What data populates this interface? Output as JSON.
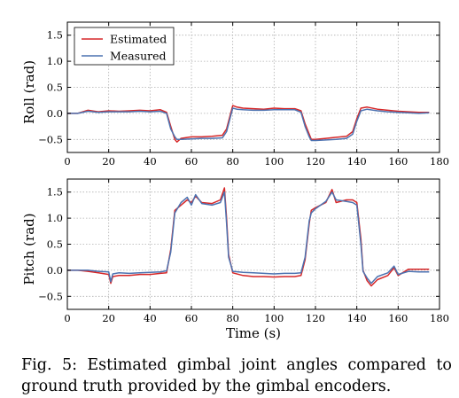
{
  "caption": {
    "label": "Fig. 5:",
    "text": "Estimated gimbal joint angles compared to ground truth provided by the gimbal encoders."
  },
  "chart_data": [
    {
      "type": "line",
      "title": "",
      "xlabel": "",
      "ylabel": "Roll (rad)",
      "xlim": [
        0,
        180
      ],
      "ylim": [
        -0.75,
        1.75
      ],
      "xticks": [
        0,
        20,
        40,
        60,
        80,
        100,
        120,
        140,
        160,
        180
      ],
      "yticks": [
        -0.5,
        0.0,
        0.5,
        1.0,
        1.5
      ],
      "ytick_labels": [
        "−0.5",
        "0.0",
        "0.5",
        "1.0",
        "1.5"
      ],
      "grid": true,
      "legend": "top-left",
      "series": [
        {
          "name": "Estimated",
          "color": "#d62728",
          "x": [
            0,
            5,
            10,
            15,
            20,
            25,
            30,
            35,
            40,
            45,
            48,
            50,
            52,
            53,
            55,
            60,
            65,
            70,
            75,
            77,
            79,
            80,
            82,
            85,
            90,
            95,
            100,
            105,
            110,
            113,
            115,
            117,
            118,
            120,
            125,
            130,
            135,
            138,
            140,
            142,
            145,
            150,
            155,
            160,
            165,
            170,
            175
          ],
          "y": [
            0.0,
            0.0,
            0.06,
            0.03,
            0.05,
            0.04,
            0.05,
            0.06,
            0.05,
            0.07,
            0.02,
            -0.25,
            -0.5,
            -0.55,
            -0.48,
            -0.45,
            -0.45,
            -0.44,
            -0.42,
            -0.3,
            0.0,
            0.15,
            0.12,
            0.1,
            0.09,
            0.08,
            0.1,
            0.09,
            0.09,
            0.05,
            -0.2,
            -0.4,
            -0.5,
            -0.5,
            -0.48,
            -0.46,
            -0.44,
            -0.35,
            -0.1,
            0.1,
            0.12,
            0.08,
            0.06,
            0.04,
            0.03,
            0.02,
            0.02
          ]
        },
        {
          "name": "Measured",
          "color": "#4c72b0",
          "x": [
            0,
            5,
            10,
            15,
            20,
            25,
            30,
            35,
            40,
            45,
            48,
            50,
            52,
            53,
            55,
            60,
            65,
            70,
            75,
            77,
            79,
            80,
            82,
            85,
            90,
            95,
            100,
            105,
            110,
            113,
            115,
            117,
            118,
            120,
            125,
            130,
            135,
            138,
            140,
            142,
            145,
            150,
            155,
            160,
            165,
            170,
            175
          ],
          "y": [
            0.0,
            0.0,
            0.04,
            0.02,
            0.03,
            0.03,
            0.03,
            0.04,
            0.03,
            0.04,
            0.0,
            -0.3,
            -0.45,
            -0.5,
            -0.5,
            -0.49,
            -0.48,
            -0.48,
            -0.47,
            -0.35,
            -0.05,
            0.1,
            0.08,
            0.07,
            0.06,
            0.06,
            0.07,
            0.07,
            0.07,
            0.02,
            -0.25,
            -0.45,
            -0.52,
            -0.52,
            -0.51,
            -0.5,
            -0.48,
            -0.4,
            -0.15,
            0.05,
            0.08,
            0.05,
            0.03,
            0.02,
            0.01,
            0.0,
            0.01
          ]
        }
      ]
    },
    {
      "type": "line",
      "title": "",
      "xlabel": "Time (s)",
      "ylabel": "Pitch (rad)",
      "xlim": [
        0,
        180
      ],
      "ylim": [
        -0.75,
        1.75
      ],
      "xticks": [
        0,
        20,
        40,
        60,
        80,
        100,
        120,
        140,
        160,
        180
      ],
      "yticks": [
        -0.5,
        0.0,
        0.5,
        1.0,
        1.5
      ],
      "ytick_labels": [
        "−0.5",
        "0.0",
        "0.5",
        "1.0",
        "1.5"
      ],
      "grid": true,
      "series": [
        {
          "name": "Estimated",
          "color": "#d62728",
          "x": [
            0,
            5,
            10,
            15,
            20,
            21,
            22,
            25,
            30,
            35,
            40,
            45,
            48,
            50,
            52,
            55,
            58,
            60,
            62,
            65,
            70,
            74,
            76,
            77,
            78,
            80,
            85,
            90,
            95,
            100,
            105,
            110,
            113,
            115,
            117,
            118,
            120,
            125,
            128,
            130,
            135,
            138,
            140,
            142,
            143,
            145,
            147,
            150,
            155,
            158,
            160,
            165,
            170,
            175
          ],
          "y": [
            0.0,
            0.0,
            -0.02,
            -0.05,
            -0.08,
            -0.25,
            -0.12,
            -0.1,
            -0.1,
            -0.08,
            -0.08,
            -0.06,
            -0.05,
            0.4,
            1.15,
            1.25,
            1.35,
            1.3,
            1.42,
            1.3,
            1.28,
            1.35,
            1.58,
            1.0,
            0.3,
            -0.05,
            -0.1,
            -0.12,
            -0.12,
            -0.13,
            -0.12,
            -0.12,
            -0.1,
            0.2,
            0.9,
            1.15,
            1.2,
            1.3,
            1.55,
            1.3,
            1.35,
            1.35,
            1.3,
            0.6,
            0.0,
            -0.2,
            -0.3,
            -0.18,
            -0.1,
            0.05,
            -0.1,
            0.02,
            0.02,
            0.02
          ]
        },
        {
          "name": "Measured",
          "color": "#4c72b0",
          "x": [
            0,
            5,
            10,
            15,
            20,
            21,
            22,
            25,
            30,
            35,
            40,
            45,
            48,
            50,
            52,
            55,
            58,
            60,
            62,
            65,
            70,
            74,
            76,
            77,
            78,
            80,
            85,
            90,
            95,
            100,
            105,
            110,
            113,
            115,
            117,
            118,
            120,
            125,
            128,
            130,
            135,
            138,
            140,
            142,
            143,
            145,
            147,
            150,
            155,
            158,
            160,
            165,
            170,
            175
          ],
          "y": [
            0.0,
            0.0,
            0.0,
            -0.02,
            -0.03,
            -0.22,
            -0.07,
            -0.05,
            -0.06,
            -0.05,
            -0.04,
            -0.03,
            -0.01,
            0.35,
            1.1,
            1.3,
            1.4,
            1.25,
            1.45,
            1.28,
            1.25,
            1.3,
            1.5,
            0.9,
            0.25,
            -0.02,
            -0.04,
            -0.05,
            -0.06,
            -0.07,
            -0.06,
            -0.06,
            -0.05,
            0.25,
            0.95,
            1.1,
            1.18,
            1.32,
            1.5,
            1.35,
            1.32,
            1.3,
            1.25,
            0.5,
            -0.02,
            -0.15,
            -0.25,
            -0.12,
            -0.05,
            0.08,
            -0.08,
            -0.02,
            -0.03,
            -0.03
          ]
        }
      ]
    }
  ]
}
